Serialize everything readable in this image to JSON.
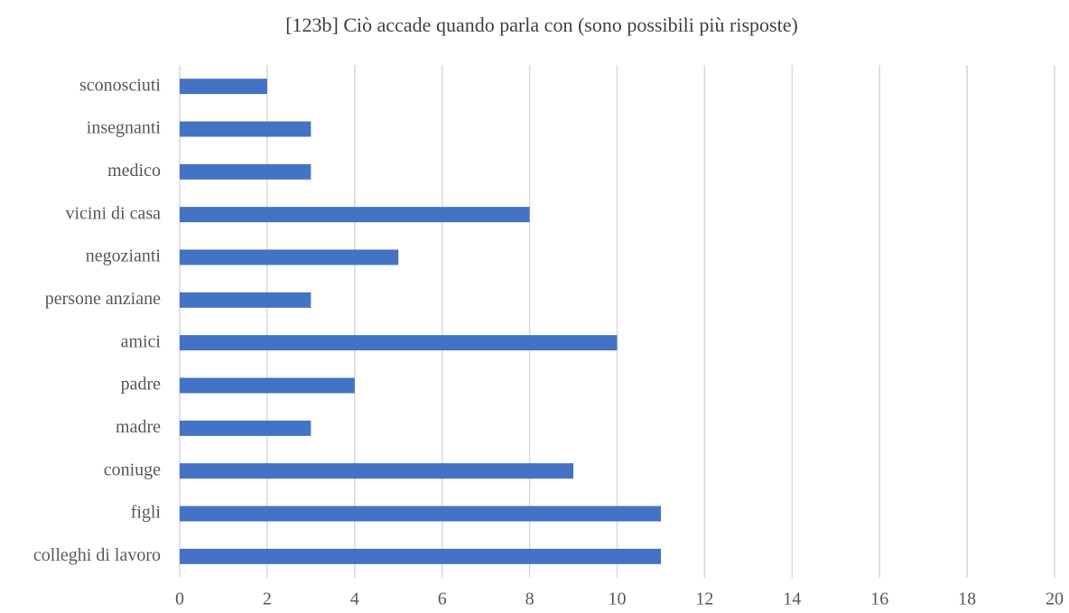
{
  "chart_data": {
    "type": "bar",
    "orientation": "horizontal",
    "title": "[123b] Ciò accade quando parla con (sono possibili più risposte)",
    "categories": [
      "sconosciuti",
      "insegnanti",
      "medico",
      "vicini di casa",
      "negozianti",
      "persone anziane",
      "amici",
      "padre",
      "madre",
      "coniuge",
      "figli",
      "colleghi di lavoro"
    ],
    "values": [
      2,
      3,
      3,
      8,
      5,
      3,
      10,
      4,
      3,
      9,
      11,
      11
    ],
    "color": "#4472c4",
    "xlim": [
      0,
      20
    ],
    "xticks": [
      0,
      2,
      4,
      6,
      8,
      10,
      12,
      14,
      16,
      18,
      20
    ],
    "grid": true
  }
}
